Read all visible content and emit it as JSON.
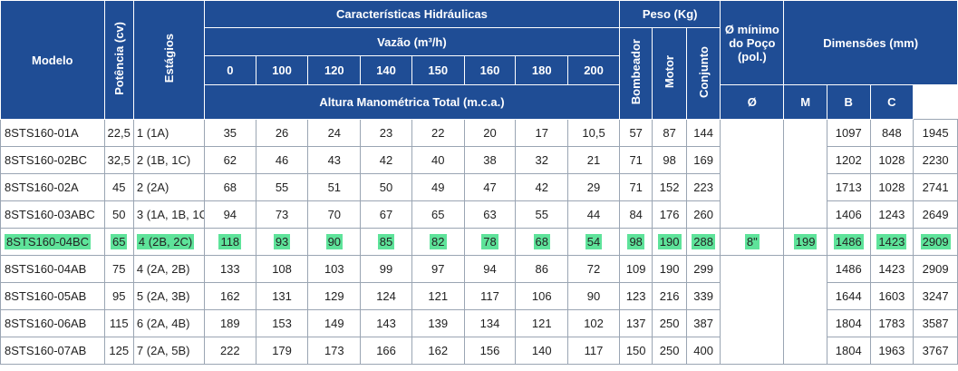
{
  "header": {
    "modelo": "Modelo",
    "potencia": "Potência (cv)",
    "estagios": "Estágios",
    "caracteristicas": "Características Hidráulicas",
    "vazao": "Vazão (m³/h)",
    "vazao_values": [
      "0",
      "100",
      "120",
      "140",
      "150",
      "160",
      "180",
      "200"
    ],
    "altura": "Altura Manométrica Total (m.c.a.)",
    "peso": "Peso (Kg)",
    "bombeador": "Bombeador",
    "motor": "Motor",
    "conjunto": "Conjunto",
    "diam_minimo": "Ø mínimo do Poço (pol.)",
    "dimensoes": "Dimensões (mm)",
    "diam": "Ø",
    "m": "M",
    "b": "B",
    "c": "C"
  },
  "merged": {
    "poco": "8\"",
    "diam": "199"
  },
  "highlight_color": "#5ee39a",
  "rows": [
    {
      "modelo": "8STS160-01A",
      "potencia": "22,5",
      "estagios": "1 (1A)",
      "alturas": [
        "35",
        "26",
        "24",
        "23",
        "22",
        "20",
        "17",
        "10,5"
      ],
      "bombeador": "57",
      "motor": "87",
      "conjunto": "144",
      "m": "1097",
      "b": "848",
      "c": "1945"
    },
    {
      "modelo": "8STS160-02BC",
      "potencia": "32,5",
      "estagios": "2 (1B, 1C)",
      "alturas": [
        "62",
        "46",
        "43",
        "42",
        "40",
        "38",
        "32",
        "21"
      ],
      "bombeador": "71",
      "motor": "98",
      "conjunto": "169",
      "m": "1202",
      "b": "1028",
      "c": "2230"
    },
    {
      "modelo": "8STS160-02A",
      "potencia": "45",
      "estagios": "2 (2A)",
      "alturas": [
        "68",
        "55",
        "51",
        "50",
        "49",
        "47",
        "42",
        "29"
      ],
      "bombeador": "71",
      "motor": "152",
      "conjunto": "223",
      "m": "1713",
      "b": "1028",
      "c": "2741"
    },
    {
      "modelo": "8STS160-03ABC",
      "potencia": "50",
      "estagios": "3 (1A, 1B, 1C)",
      "alturas": [
        "94",
        "73",
        "70",
        "67",
        "65",
        "63",
        "55",
        "44"
      ],
      "bombeador": "84",
      "motor": "176",
      "conjunto": "260",
      "m": "1406",
      "b": "1243",
      "c": "2649"
    },
    {
      "modelo": "8STS160-04BC",
      "potencia": "65",
      "estagios": "4 (2B, 2C)",
      "alturas": [
        "118",
        "93",
        "90",
        "85",
        "82",
        "78",
        "68",
        "54"
      ],
      "bombeador": "98",
      "motor": "190",
      "conjunto": "288",
      "m": "1486",
      "b": "1423",
      "c": "2909"
    },
    {
      "modelo": "8STS160-04AB",
      "potencia": "75",
      "estagios": "4 (2A, 2B)",
      "alturas": [
        "133",
        "108",
        "103",
        "99",
        "97",
        "94",
        "86",
        "72"
      ],
      "bombeador": "109",
      "motor": "190",
      "conjunto": "299",
      "m": "1486",
      "b": "1423",
      "c": "2909"
    },
    {
      "modelo": "8STS160-05AB",
      "potencia": "95",
      "estagios": "5 (2A, 3B)",
      "alturas": [
        "162",
        "131",
        "129",
        "124",
        "121",
        "117",
        "106",
        "90"
      ],
      "bombeador": "123",
      "motor": "216",
      "conjunto": "339",
      "m": "1644",
      "b": "1603",
      "c": "3247"
    },
    {
      "modelo": "8STS160-06AB",
      "potencia": "115",
      "estagios": "6 (2A, 4B)",
      "alturas": [
        "189",
        "153",
        "149",
        "143",
        "139",
        "134",
        "121",
        "102"
      ],
      "bombeador": "137",
      "motor": "250",
      "conjunto": "387",
      "m": "1804",
      "b": "1783",
      "c": "3587"
    },
    {
      "modelo": "8STS160-07AB",
      "potencia": "125",
      "estagios": "7 (2A, 5B)",
      "alturas": [
        "222",
        "179",
        "173",
        "166",
        "162",
        "156",
        "140",
        "117"
      ],
      "bombeador": "150",
      "motor": "250",
      "conjunto": "400",
      "m": "1804",
      "b": "1963",
      "c": "3767"
    }
  ]
}
